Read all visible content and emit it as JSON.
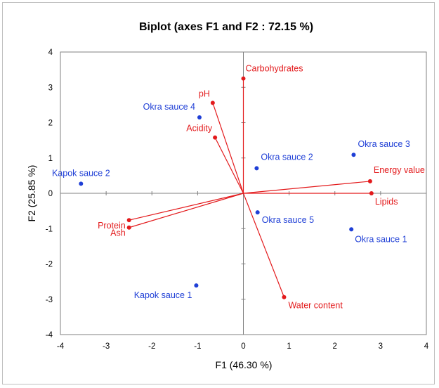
{
  "chart_data": {
    "type": "scatter",
    "title": "Biplot (axes F1 and F2 : 72.15 %)",
    "xlabel": "F1 (46.30 %)",
    "ylabel": "F2 (25.85 %)",
    "xlim": [
      -4,
      4
    ],
    "ylim": [
      -4,
      4
    ],
    "x_ticks": [
      "-4",
      "-3",
      "-2",
      "-1",
      "0",
      "1",
      "2",
      "3",
      "4"
    ],
    "y_ticks": [
      "-4",
      "-3",
      "-2",
      "-1",
      "0",
      "1",
      "2",
      "3",
      "4"
    ],
    "grid": false,
    "observations": {
      "color": "#1f3fd6",
      "points": [
        {
          "label": "Okra sauce 1",
          "x": 2.36,
          "y": -1.02
        },
        {
          "label": "Okra sauce 2",
          "x": 0.29,
          "y": 0.71
        },
        {
          "label": "Okra sauce 3",
          "x": 2.41,
          "y": 1.09
        },
        {
          "label": "Okra sauce 4",
          "x": -0.96,
          "y": 2.15
        },
        {
          "label": "Okra sauce 5",
          "x": 0.31,
          "y": -0.54
        },
        {
          "label": "Kapok sauce 1",
          "x": -1.03,
          "y": -2.61
        },
        {
          "label": "Kapok sauce 2",
          "x": -3.55,
          "y": 0.27
        }
      ]
    },
    "variables": {
      "color": "#e31a1c",
      "vectors": [
        {
          "label": "Carbohydrates",
          "x": 0.0,
          "y": 3.25
        },
        {
          "label": "pH",
          "x": -0.67,
          "y": 2.56
        },
        {
          "label": "Acidity",
          "x": -0.62,
          "y": 1.58
        },
        {
          "label": "Energy value",
          "x": 2.77,
          "y": 0.34
        },
        {
          "label": "Lipids",
          "x": 2.8,
          "y": 0.0
        },
        {
          "label": "Protein",
          "x": -2.5,
          "y": -0.76
        },
        {
          "label": "Ash",
          "x": -2.5,
          "y": -0.97
        },
        {
          "label": "Water content",
          "x": 0.89,
          "y": -2.94
        }
      ]
    }
  }
}
